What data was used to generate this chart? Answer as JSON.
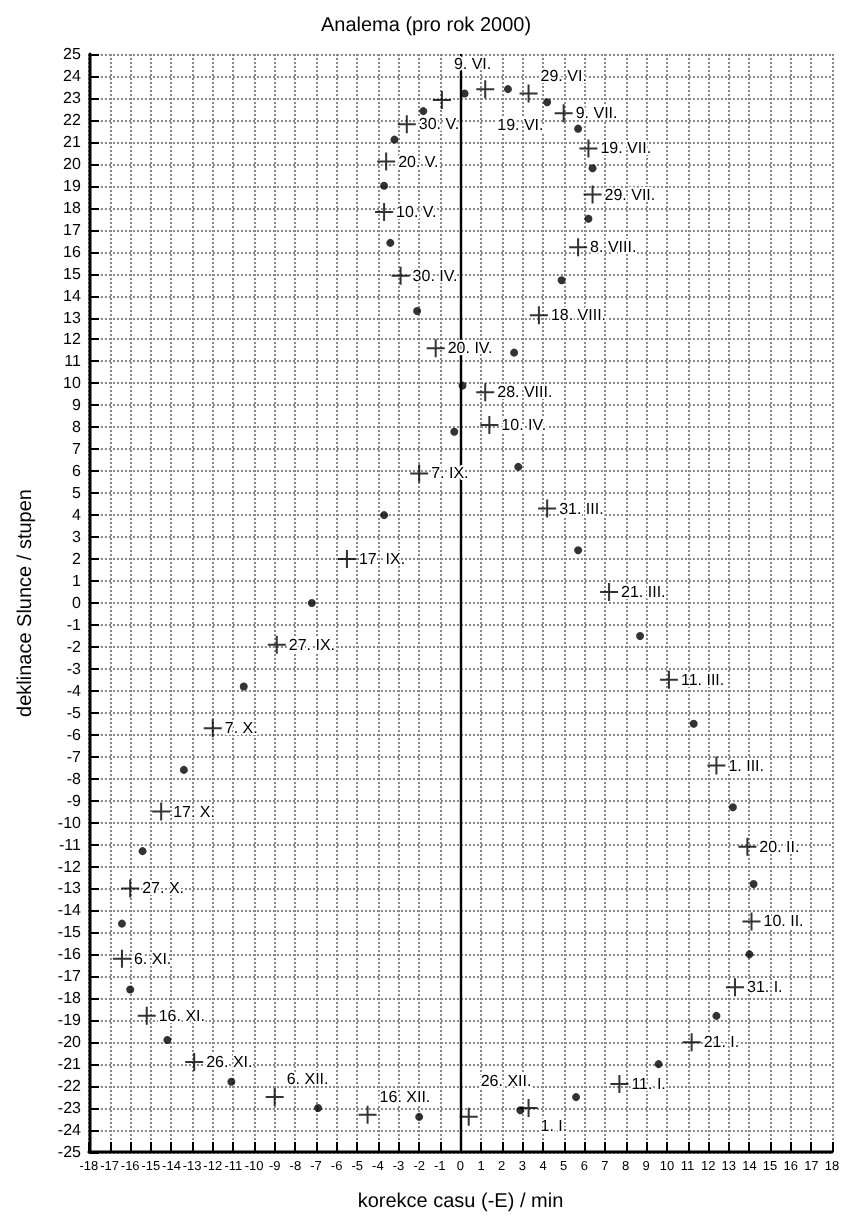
{
  "chart_data": {
    "type": "scatter",
    "title": "Analema (pro rok 2000)",
    "xlabel": "korekce casu (-E) / min",
    "ylabel": "deklinace Slunce / stupen",
    "xlim": [
      -18,
      18
    ],
    "ylim": [
      -25,
      25
    ],
    "xticks": [
      -18,
      -17,
      -16,
      -15,
      -14,
      -13,
      -12,
      -11,
      -10,
      -9,
      -8,
      -7,
      -6,
      -5,
      -4,
      -3,
      -2,
      -1,
      0,
      1,
      2,
      3,
      4,
      5,
      6,
      7,
      8,
      9,
      10,
      11,
      12,
      13,
      14,
      15,
      16,
      17,
      18
    ],
    "yticks": [
      -25,
      -24,
      -23,
      -22,
      -21,
      -20,
      -19,
      -18,
      -17,
      -16,
      -15,
      -14,
      -13,
      -12,
      -11,
      -10,
      -9,
      -8,
      -7,
      -6,
      -5,
      -4,
      -3,
      -2,
      -1,
      0,
      1,
      2,
      3,
      4,
      5,
      6,
      7,
      8,
      9,
      10,
      11,
      12,
      13,
      14,
      15,
      16,
      17,
      18,
      19,
      20,
      21,
      22,
      23,
      24,
      25
    ],
    "grid": true,
    "ref_lines": [
      {
        "axis": "x",
        "value": 0,
        "color": "#000000"
      }
    ],
    "series": [
      {
        "marker": "circle",
        "color": "#000000",
        "x": [
          5.6,
          9.6,
          12.4,
          14.0,
          14.2,
          13.2,
          11.3,
          8.7,
          5.7,
          2.8,
          0.1,
          -2.1,
          -3.4,
          -3.7,
          -3.2,
          -1.8,
          0.2,
          2.3,
          4.2,
          5.7,
          6.4,
          6.2,
          4.9,
          2.6,
          -0.3,
          -3.7,
          -7.2,
          -10.5,
          -13.4,
          -15.4,
          -16.4,
          -16.0,
          -14.2,
          -11.1,
          -6.9,
          -2.0,
          2.9
        ],
        "values": [
          -22.5,
          -21.0,
          -18.8,
          -16.0,
          -12.8,
          -9.3,
          -5.5,
          -1.5,
          2.4,
          6.2,
          9.9,
          13.3,
          16.4,
          19.0,
          21.1,
          22.4,
          23.2,
          23.4,
          22.8,
          21.6,
          19.8,
          17.5,
          14.7,
          11.4,
          7.8,
          4.0,
          0.0,
          -3.8,
          -7.6,
          -11.3,
          -14.6,
          -17.6,
          -19.9,
          -21.8,
          -23.0,
          -23.4,
          -23.1
        ]
      },
      {
        "marker": "cross",
        "color": "#000000",
        "x": [
          3.3,
          7.7,
          11.2,
          13.3,
          14.1,
          13.9,
          12.4,
          10.1,
          7.2,
          4.2,
          1.4,
          -1.2,
          -2.9,
          -3.7,
          -3.6,
          -2.6,
          -0.9,
          1.2,
          3.3,
          5.0,
          6.2,
          6.4,
          5.7,
          3.8,
          1.2,
          -2.0,
          -5.5,
          -8.9,
          -12.0,
          -14.5,
          -16.0,
          -16.4,
          -15.2,
          -12.9,
          -9.0,
          -4.5,
          0.4
        ],
        "values": [
          -23.0,
          -21.9,
          -20.0,
          -17.5,
          -14.5,
          -11.1,
          -7.4,
          -3.5,
          0.5,
          4.3,
          8.1,
          11.6,
          14.9,
          17.8,
          20.1,
          21.8,
          22.9,
          23.4,
          23.2,
          22.3,
          20.7,
          18.6,
          16.2,
          13.1,
          9.6,
          5.9,
          2.0,
          -1.9,
          -5.7,
          -9.5,
          -13.0,
          -16.2,
          -18.8,
          -20.9,
          -22.5,
          -23.3,
          -23.4
        ]
      }
    ],
    "annotations": [
      {
        "text": "1. I.",
        "x": 3.3,
        "y": -23.0
      },
      {
        "text": "11. I.",
        "x": 7.7,
        "y": -21.9
      },
      {
        "text": "21. I.",
        "x": 11.2,
        "y": -20.0
      },
      {
        "text": "31. I.",
        "x": 13.3,
        "y": -17.5
      },
      {
        "text": "10. II.",
        "x": 14.1,
        "y": -14.5
      },
      {
        "text": "20. II.",
        "x": 13.9,
        "y": -11.1
      },
      {
        "text": "1. III.",
        "x": 12.4,
        "y": -7.4
      },
      {
        "text": "11. III.",
        "x": 10.1,
        "y": -3.5
      },
      {
        "text": "21. III.",
        "x": 7.2,
        "y": 0.5
      },
      {
        "text": "31. III.",
        "x": 4.2,
        "y": 4.3
      },
      {
        "text": "10. IV.",
        "x": 1.4,
        "y": 8.1
      },
      {
        "text": "20. IV.",
        "x": -1.2,
        "y": 11.6
      },
      {
        "text": "30. IV.",
        "x": -2.9,
        "y": 14.9
      },
      {
        "text": "10. V.",
        "x": -3.7,
        "y": 17.8
      },
      {
        "text": "20. V.",
        "x": -3.6,
        "y": 20.1
      },
      {
        "text": "30. V.",
        "x": -2.6,
        "y": 21.8
      },
      {
        "text": "9. VI.",
        "x": -0.9,
        "y": 22.9
      },
      {
        "text": "19. VI.",
        "x": 1.2,
        "y": 23.4
      },
      {
        "text": "29. VI.",
        "x": 3.3,
        "y": 23.2
      },
      {
        "text": "9. VII.",
        "x": 5.0,
        "y": 22.3
      },
      {
        "text": "19. VII.",
        "x": 6.2,
        "y": 20.7
      },
      {
        "text": "29. VII.",
        "x": 6.4,
        "y": 18.6
      },
      {
        "text": "8. VIII.",
        "x": 5.7,
        "y": 16.2
      },
      {
        "text": "18. VIII.",
        "x": 3.8,
        "y": 13.1
      },
      {
        "text": "28. VIII.",
        "x": 1.2,
        "y": 9.6
      },
      {
        "text": "7. IX.",
        "x": -2.0,
        "y": 5.9
      },
      {
        "text": "17. IX.",
        "x": -5.5,
        "y": 2.0
      },
      {
        "text": "27. IX.",
        "x": -8.9,
        "y": -1.9
      },
      {
        "text": "7. X.",
        "x": -12.0,
        "y": -5.7
      },
      {
        "text": "17. X.",
        "x": -14.5,
        "y": -9.5
      },
      {
        "text": "27. X.",
        "x": -16.0,
        "y": -13.0
      },
      {
        "text": "6. XI.",
        "x": -16.4,
        "y": -16.2
      },
      {
        "text": "16. XI.",
        "x": -15.2,
        "y": -18.8
      },
      {
        "text": "26. XI.",
        "x": -12.9,
        "y": -20.9
      },
      {
        "text": "6. XII.",
        "x": -9.0,
        "y": -22.5
      },
      {
        "text": "16. XII.",
        "x": -4.5,
        "y": -23.3
      },
      {
        "text": "26. XII.",
        "x": 0.4,
        "y": -23.4
      }
    ]
  }
}
